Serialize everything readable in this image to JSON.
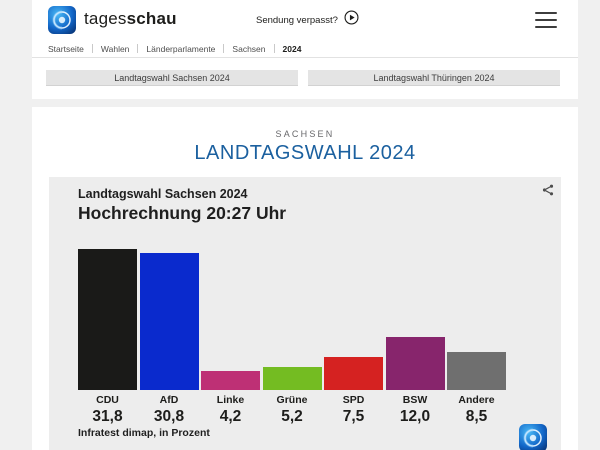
{
  "header": {
    "brand_light": "tages",
    "brand_bold": "schau",
    "sendung_verpasst": "Sendung verpasst?",
    "icons": [
      "tagesschau-logo-icon",
      "play-icon",
      "hamburger-menu-icon"
    ]
  },
  "breadcrumb": {
    "items": [
      "Startseite",
      "Wahlen",
      "Länderparlamente",
      "Sachsen",
      "2024"
    ]
  },
  "nav_buttons": [
    {
      "label": "Landtagswahl Sachsen 2024"
    },
    {
      "label": "Landtagswahl Thüringen 2024"
    }
  ],
  "main": {
    "kicker": "SACHSEN",
    "title": "LANDTAGSWAHL 2024",
    "title_color": "#1b609f"
  },
  "chart_data": {
    "type": "bar",
    "title": "Landtagswahl Sachsen 2024",
    "subtitle": "Hochrechnung 20:27 Uhr",
    "source": "Infratest dimap, in Prozent",
    "categories": [
      "CDU",
      "AfD",
      "Linke",
      "Grüne",
      "SPD",
      "BSW",
      "Andere"
    ],
    "values": [
      31.8,
      30.8,
      4.2,
      5.2,
      7.5,
      12.0,
      8.5
    ],
    "value_labels": [
      "31,8",
      "30,8",
      "4,2",
      "5,2",
      "7,5",
      "12,0",
      "8,5"
    ],
    "colors": [
      "#1a1a18",
      "#0a2acd",
      "#be3075",
      "#74bc22",
      "#d52221",
      "#87256c",
      "#6f6f6f"
    ],
    "ylim": [
      0,
      35
    ],
    "xlabel": "",
    "ylabel": "Prozent",
    "grid": false,
    "legend": "none"
  }
}
